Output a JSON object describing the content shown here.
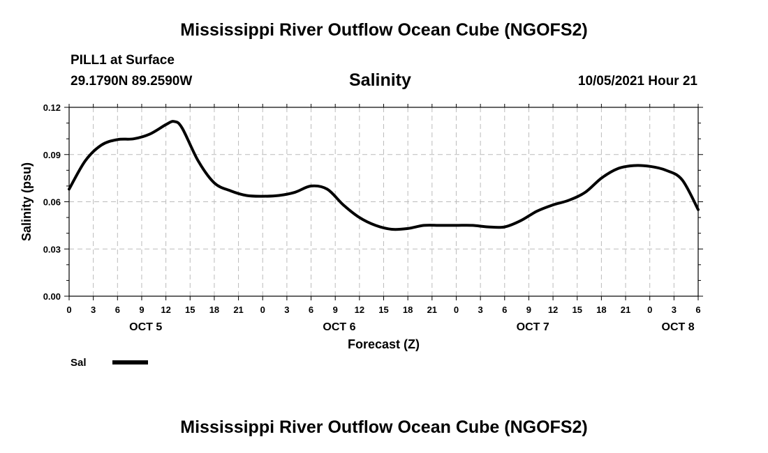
{
  "header": {
    "title_top": "Mississippi River Outflow Ocean Cube (NGOFS2)",
    "station": "PILL1 at Surface",
    "coords": "29.1790N  89.2590W",
    "variable": "Salinity",
    "datetime": "10/05/2021 Hour 21",
    "title_bottom": "Mississippi River Outflow Ocean Cube (NGOFS2)"
  },
  "legend": {
    "label": "Sal"
  },
  "colors": {
    "line": "#000000",
    "grid": "#bbbbbb"
  },
  "chart_data": {
    "type": "line",
    "title": "Salinity",
    "xlabel": "Forecast (Z)",
    "ylabel": "Salinity (psu)",
    "ylim": [
      0,
      0.12
    ],
    "xlim": [
      0,
      78
    ],
    "grid": true,
    "legend_position": "bottom-left",
    "yticks": [
      "0.00",
      "0.03",
      "0.06",
      "0.09",
      "0.12"
    ],
    "xtick_labels": [
      "0",
      "3",
      "6",
      "9",
      "12",
      "15",
      "18",
      "21",
      "0",
      "3",
      "6",
      "9",
      "12",
      "15",
      "18",
      "21",
      "0",
      "3",
      "6",
      "9",
      "12",
      "15",
      "18",
      "21",
      "0",
      "3",
      "6"
    ],
    "date_labels": [
      {
        "label": "OCT 5",
        "hour": 9.5
      },
      {
        "label": "OCT 6",
        "hour": 33.5
      },
      {
        "label": "OCT 7",
        "hour": 57.5
      },
      {
        "label": "OCT 8",
        "hour": 75.5
      }
    ],
    "series": [
      {
        "name": "Sal",
        "x": [
          0,
          2,
          4,
          6,
          8,
          10,
          12,
          13,
          14,
          16,
          18,
          20,
          22,
          24,
          26,
          28,
          30,
          32,
          34,
          36,
          38,
          40,
          42,
          44,
          46,
          48,
          50,
          52,
          54,
          56,
          58,
          60,
          62,
          64,
          66,
          68,
          70,
          72,
          74,
          76,
          78
        ],
        "values": [
          0.068,
          0.086,
          0.096,
          0.0995,
          0.1,
          0.103,
          0.109,
          0.111,
          0.107,
          0.086,
          0.072,
          0.067,
          0.064,
          0.0635,
          0.064,
          0.066,
          0.07,
          0.068,
          0.058,
          0.05,
          0.045,
          0.0425,
          0.043,
          0.045,
          0.045,
          0.045,
          0.045,
          0.044,
          0.044,
          0.048,
          0.054,
          0.058,
          0.061,
          0.066,
          0.075,
          0.081,
          0.083,
          0.0825,
          0.08,
          0.074,
          0.055
        ]
      }
    ]
  }
}
